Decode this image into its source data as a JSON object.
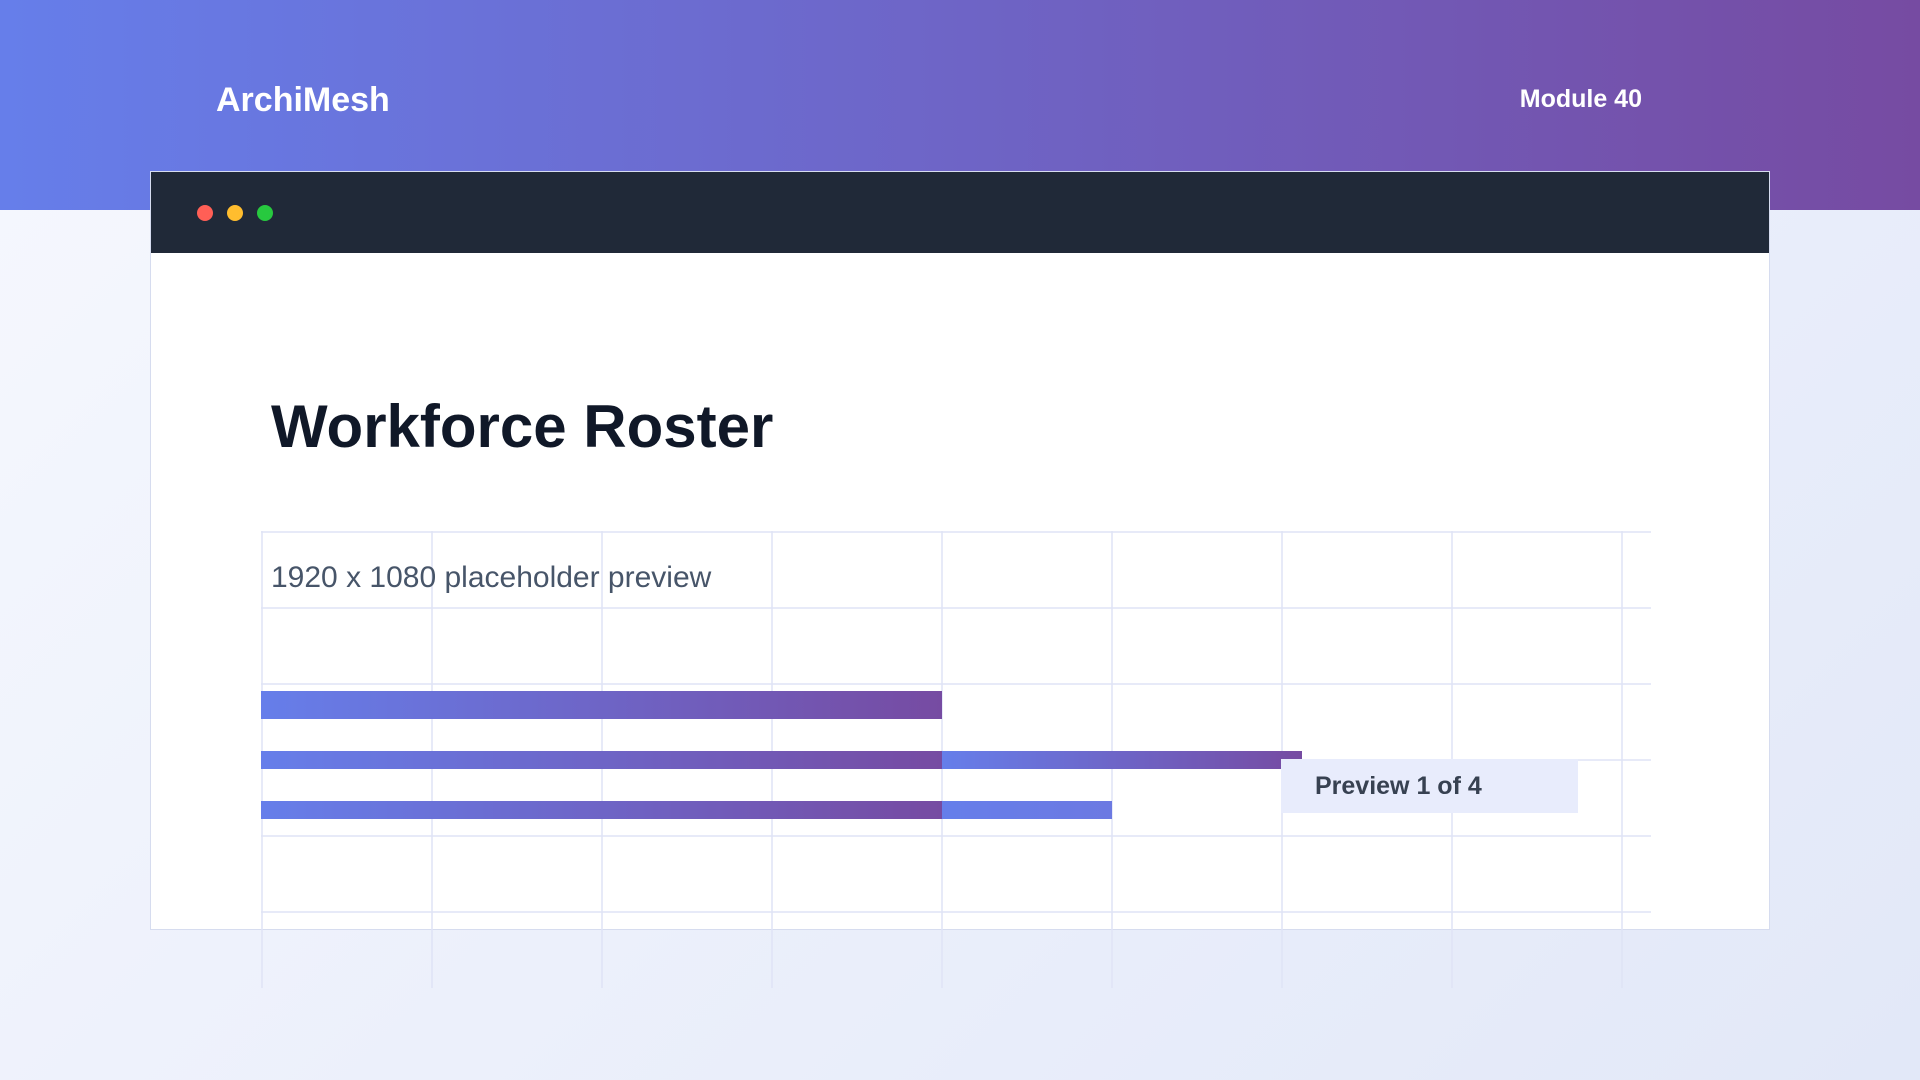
{
  "app": {
    "brand": "ArchiMesh",
    "module_label": "Module 40"
  },
  "window": {
    "controls": [
      "close",
      "minimize",
      "maximize"
    ],
    "colors": {
      "titlebar": "#202938",
      "close": "#ff5f56",
      "minimize": "#ffbd2e",
      "maximize": "#27c93f"
    }
  },
  "main": {
    "title": "Workforce Roster",
    "subtitle": "1920 x 1080 placeholder preview",
    "badge": "Preview 1 of 4"
  },
  "theme": {
    "gradient_start": "#667eea",
    "gradient_end": "#764ba2",
    "grid_line": "#dfe3f6",
    "badge_bg": "#e8ecfc"
  }
}
